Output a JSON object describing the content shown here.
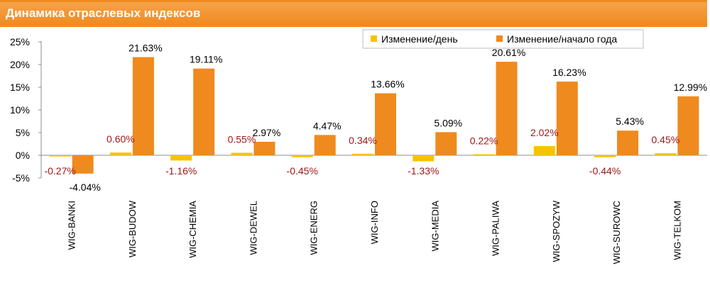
{
  "header": {
    "title": "Динамика отраслевых индексов"
  },
  "colors": {
    "change_day": "#f7c300",
    "change_ytd": "#ef8a1e",
    "title_bar": "#f08a1f",
    "day_label": "#a01818"
  },
  "chart_data": {
    "type": "bar",
    "categories": [
      "WIG-BANKI",
      "WIG-BUDOW",
      "WIG-CHEMIA",
      "WIG-DEWEL",
      "WIG-ENERG",
      "WIG-INFO",
      "WIG-MEDIA",
      "WIG-PALIWA",
      "WIG-SPOZYW",
      "WIG-SUROWC",
      "WIG-TELKOM"
    ],
    "series": [
      {
        "name": "Изменение/день",
        "values": [
          -0.27,
          0.6,
          -1.16,
          0.55,
          -0.45,
          0.34,
          -1.33,
          0.22,
          2.02,
          -0.44,
          0.45
        ],
        "labels": [
          "-0.27%",
          "0.60%",
          "-1.16%",
          "0.55%",
          "-0.45%",
          "0.34%",
          "-1.33%",
          "0.22%",
          "2.02%",
          "-0.44%",
          "0.45%"
        ]
      },
      {
        "name": "Изменение/начало года",
        "values": [
          -4.04,
          21.63,
          19.11,
          2.97,
          4.47,
          13.66,
          5.09,
          20.61,
          16.23,
          5.43,
          12.99
        ],
        "labels": [
          "-4.04%",
          "21.63%",
          "19.11%",
          "2.97%",
          "4.47%",
          "13.66%",
          "5.09%",
          "20.61%",
          "16.23%",
          "5.43%",
          "12.99%"
        ]
      }
    ],
    "yticks": [
      "25%",
      "20%",
      "15%",
      "10%",
      "5%",
      "0%",
      "-5%"
    ],
    "ylim": [
      -5,
      25
    ],
    "legend": "top-right",
    "grid": false
  }
}
